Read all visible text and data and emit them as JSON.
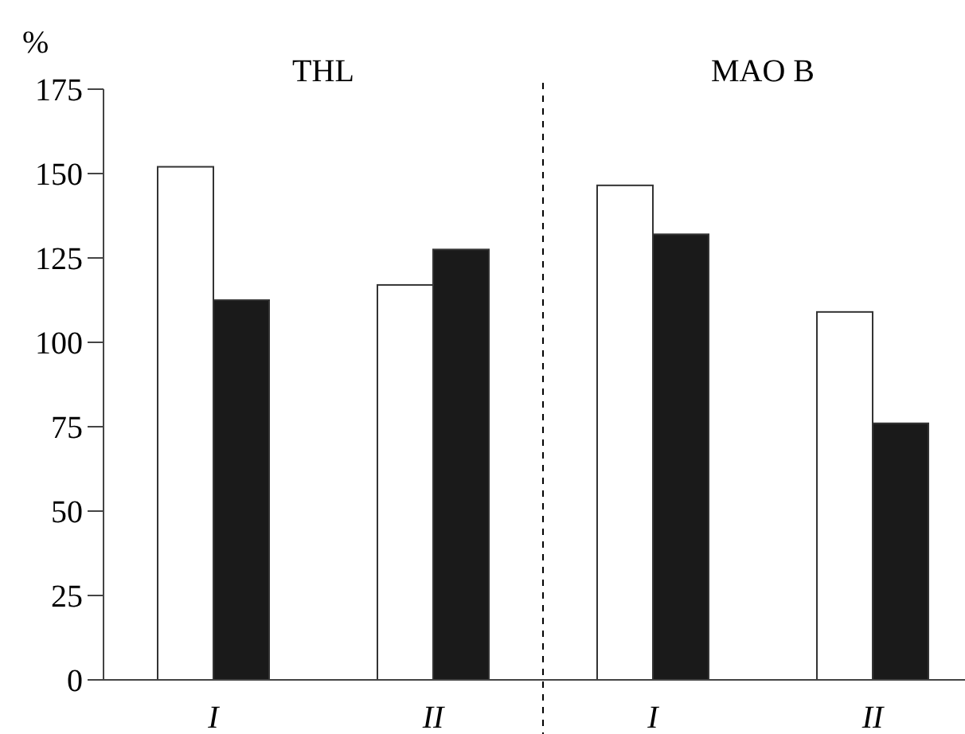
{
  "chart_data": {
    "type": "bar",
    "ylabel": "%",
    "categories": [
      "I",
      "II",
      "I",
      "II"
    ],
    "series": [
      {
        "color": "#ffffff",
        "values": [
          152,
          117,
          146.5,
          109
        ]
      },
      {
        "color": "#1a1a1a",
        "values": [
          112.5,
          127.5,
          132,
          76
        ]
      }
    ],
    "ylim": [
      0,
      175
    ],
    "yticks": [
      0,
      25,
      50,
      75,
      100,
      125,
      150,
      175
    ],
    "annotations": [
      "THL",
      "MAO B"
    ],
    "grid": false
  }
}
